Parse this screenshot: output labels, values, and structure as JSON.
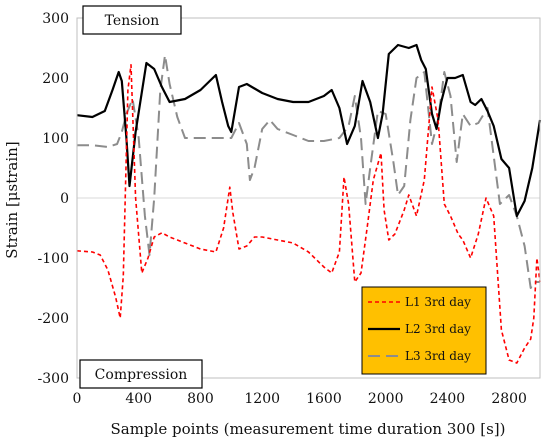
{
  "chart_data": {
    "type": "line",
    "xlabel": "Sample points (measurement time duration 300 [s])",
    "ylabel": "Strain [μstrain]",
    "xlim": [
      0,
      3000
    ],
    "ylim": [
      -300,
      300
    ],
    "xticks": [
      0,
      400,
      800,
      1200,
      1600,
      2000,
      2400,
      2800
    ],
    "yticks": [
      -300,
      -200,
      -100,
      0,
      100,
      200,
      300
    ],
    "annotations": {
      "top": "Tension",
      "bottom": "Compression"
    },
    "legend": {
      "position": "bottom-right",
      "background": "#FFC000"
    },
    "series": [
      {
        "name": "L1 3rd day",
        "color": "#FF0000",
        "dash": "dashed",
        "x": [
          0,
          100,
          150,
          200,
          250,
          280,
          300,
          330,
          350,
          380,
          420,
          460,
          500,
          550,
          600,
          700,
          800,
          900,
          950,
          990,
          1010,
          1050,
          1100,
          1150,
          1200,
          1300,
          1400,
          1500,
          1600,
          1650,
          1700,
          1730,
          1760,
          1800,
          1840,
          1880,
          1920,
          1970,
          1990,
          2020,
          2060,
          2120,
          2150,
          2200,
          2250,
          2300,
          2340,
          2380,
          2420,
          2470,
          2500,
          2550,
          2600,
          2650,
          2700,
          2750,
          2800,
          2850,
          2900,
          2940,
          2960,
          2980,
          3000
        ],
        "values": [
          -88,
          -90,
          -95,
          -120,
          -165,
          -200,
          -130,
          180,
          222,
          0,
          -125,
          -100,
          -65,
          -58,
          -65,
          -75,
          -85,
          -90,
          -50,
          18,
          -25,
          -85,
          -80,
          -65,
          -65,
          -70,
          -75,
          -90,
          -115,
          -125,
          -90,
          35,
          -10,
          -140,
          -125,
          -50,
          30,
          75,
          -20,
          -70,
          -60,
          -20,
          5,
          -30,
          30,
          185,
          130,
          -10,
          -30,
          -60,
          -70,
          -100,
          -60,
          0,
          -30,
          -220,
          -270,
          -275,
          -250,
          -235,
          -200,
          -100,
          -140
        ]
      },
      {
        "name": "L2 3rd day",
        "color": "#000000",
        "dash": "solid",
        "x": [
          0,
          100,
          180,
          230,
          270,
          290,
          320,
          340,
          380,
          450,
          500,
          550,
          600,
          700,
          800,
          900,
          940,
          980,
          1000,
          1050,
          1100,
          1200,
          1300,
          1400,
          1500,
          1600,
          1650,
          1700,
          1750,
          1800,
          1850,
          1900,
          1950,
          1980,
          2020,
          2080,
          2150,
          2200,
          2230,
          2260,
          2300,
          2330,
          2360,
          2400,
          2450,
          2500,
          2550,
          2580,
          2620,
          2660,
          2700,
          2750,
          2800,
          2850,
          2900,
          2950,
          3000
        ],
        "values": [
          138,
          135,
          145,
          180,
          210,
          195,
          100,
          20,
          110,
          225,
          215,
          185,
          160,
          165,
          180,
          205,
          160,
          120,
          110,
          185,
          190,
          175,
          165,
          160,
          160,
          170,
          180,
          150,
          90,
          120,
          195,
          160,
          100,
          140,
          240,
          255,
          250,
          255,
          230,
          215,
          140,
          115,
          160,
          200,
          200,
          205,
          160,
          155,
          165,
          145,
          120,
          65,
          50,
          -30,
          -5,
          50,
          130
        ]
      },
      {
        "name": "L3 3rd day",
        "color": "#8C8C8C",
        "dash": "longdash",
        "x": [
          0,
          100,
          200,
          260,
          290,
          320,
          360,
          400,
          440,
          470,
          500,
          540,
          570,
          600,
          650,
          700,
          800,
          900,
          1000,
          1050,
          1100,
          1120,
          1150,
          1200,
          1250,
          1300,
          1400,
          1500,
          1600,
          1700,
          1760,
          1800,
          1840,
          1870,
          1900,
          1950,
          2000,
          2050,
          2080,
          2120,
          2160,
          2200,
          2250,
          2300,
          2340,
          2380,
          2420,
          2460,
          2500,
          2550,
          2600,
          2660,
          2700,
          2740,
          2800,
          2850,
          2900,
          2940,
          2960,
          3000
        ],
        "values": [
          88,
          88,
          85,
          90,
          110,
          140,
          165,
          100,
          -30,
          -95,
          0,
          180,
          238,
          190,
          135,
          100,
          100,
          100,
          100,
          125,
          90,
          30,
          50,
          115,
          130,
          115,
          105,
          95,
          95,
          100,
          120,
          170,
          100,
          -10,
          50,
          145,
          140,
          60,
          5,
          20,
          130,
          200,
          210,
          90,
          130,
          210,
          170,
          60,
          140,
          120,
          125,
          150,
          70,
          -10,
          5,
          -30,
          -80,
          -150,
          -140,
          -140
        ]
      }
    ]
  }
}
